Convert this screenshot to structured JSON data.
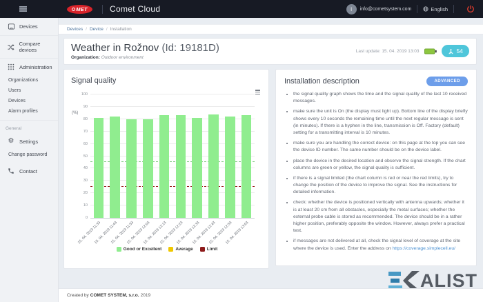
{
  "topbar": {
    "app_title": "Comet Cloud",
    "logo_text": "MET",
    "avatar_letter": "i",
    "user_email": "info@cometsystem.com",
    "language": "English"
  },
  "sidebar": {
    "devices_label": "Devices",
    "compare_label": "Compare devices",
    "admin_label": "Administration",
    "organizations_label": "Organizations",
    "users_label": "Users",
    "devices2_label": "Devices",
    "alarm_profiles_label": "Alarm profiles",
    "general_section": "General",
    "settings_label": "Settings",
    "change_password_label": "Change password",
    "contact_label": "Contact"
  },
  "breadcrumb": {
    "items": [
      "Devices",
      "Device",
      "Installation"
    ],
    "separator": "/"
  },
  "header": {
    "title": "Weather in Rožnov",
    "id_suffix": "(Id: 19181D)",
    "organization_label": "Organization:",
    "organization_value": "Outdoor environment",
    "last_update_label": "Last update:",
    "last_update_value": "15. 04. 2019 13:03",
    "signal_value": "54"
  },
  "chart_data": {
    "type": "bar",
    "title": "Signal quality",
    "ylabel": "(%)",
    "xlabel": "",
    "ylim": [
      0,
      100
    ],
    "ytick_step": 10,
    "grid": true,
    "legend_position": "bottom",
    "categories": [
      "15. 04. 2019 11:33",
      "15. 04. 2019 11:43",
      "15. 04. 2019 11:53",
      "15. 04. 2019 12:03",
      "15. 04. 2019 12:13",
      "15. 04. 2019 12:23",
      "15. 04. 2019 12:33",
      "15. 04. 2019 12:43",
      "15. 04. 2019 12:53",
      "15. 04. 2019 13:03"
    ],
    "series": [
      {
        "name": "Good or Excellent",
        "color": "#90ed8f",
        "values": [
          81,
          82,
          80,
          80,
          83,
          83,
          81,
          84,
          82,
          83
        ]
      }
    ],
    "plot_lines": [
      {
        "value": 45,
        "color": "#7cc87c"
      },
      {
        "value": 25,
        "color": "#9b1c1c"
      }
    ],
    "legend": [
      {
        "label": "Good or Excellent",
        "color": "#90ed8f"
      },
      {
        "label": "Average",
        "color": "#f0c800"
      },
      {
        "label": "Limit",
        "color": "#8e1c1c"
      }
    ]
  },
  "description_panel": {
    "title": "Installation description",
    "advanced_button": "ADVANCED",
    "bullets": [
      "the signal quality graph shows the time and the signal quality of the last 10 received messages.",
      "make sure the unit is On (the display must light up). Bottom line of the display briefly shows every 10 seconds the remaining time until the next regular message is sent (in minutes). If there is a hyphen in the line, transmission is Off. Factory (default) setting for a transmitting interval is 10 minutes.",
      "make sure you are handling the correct device: on this page at the top you can see the device ID number. The same number should be on the device label.",
      "place the device in the desired location and observe the signal strength. If the chart columns are green or yellow, the signal quality is sufficient.",
      "if there is a signal limited (the chart column is red or near the red limits), try to change the position of the device to improve the signal. See the instructions for detailed information.",
      "check: whether the device is positioned vertically with antenna upwards; whether it is at least 20 cm from all obstacles, especially the metal surfaces; whether the external probe cable is stored as recommended. The device should be in a rather higher position, preferably opposite the window. However, always prefer a practical test."
    ],
    "last_bullet_text": "if messages are not delivered at all, check the signal level of coverage at the site where the device is used. Enter the address on ",
    "last_bullet_link": "https://coverage.simplecell.eu/"
  },
  "footer": {
    "created_by_prefix": "Created by",
    "company": "COMET SYSTEM, s.r.o.",
    "year": "2019",
    "logo_text": "ALIST"
  }
}
